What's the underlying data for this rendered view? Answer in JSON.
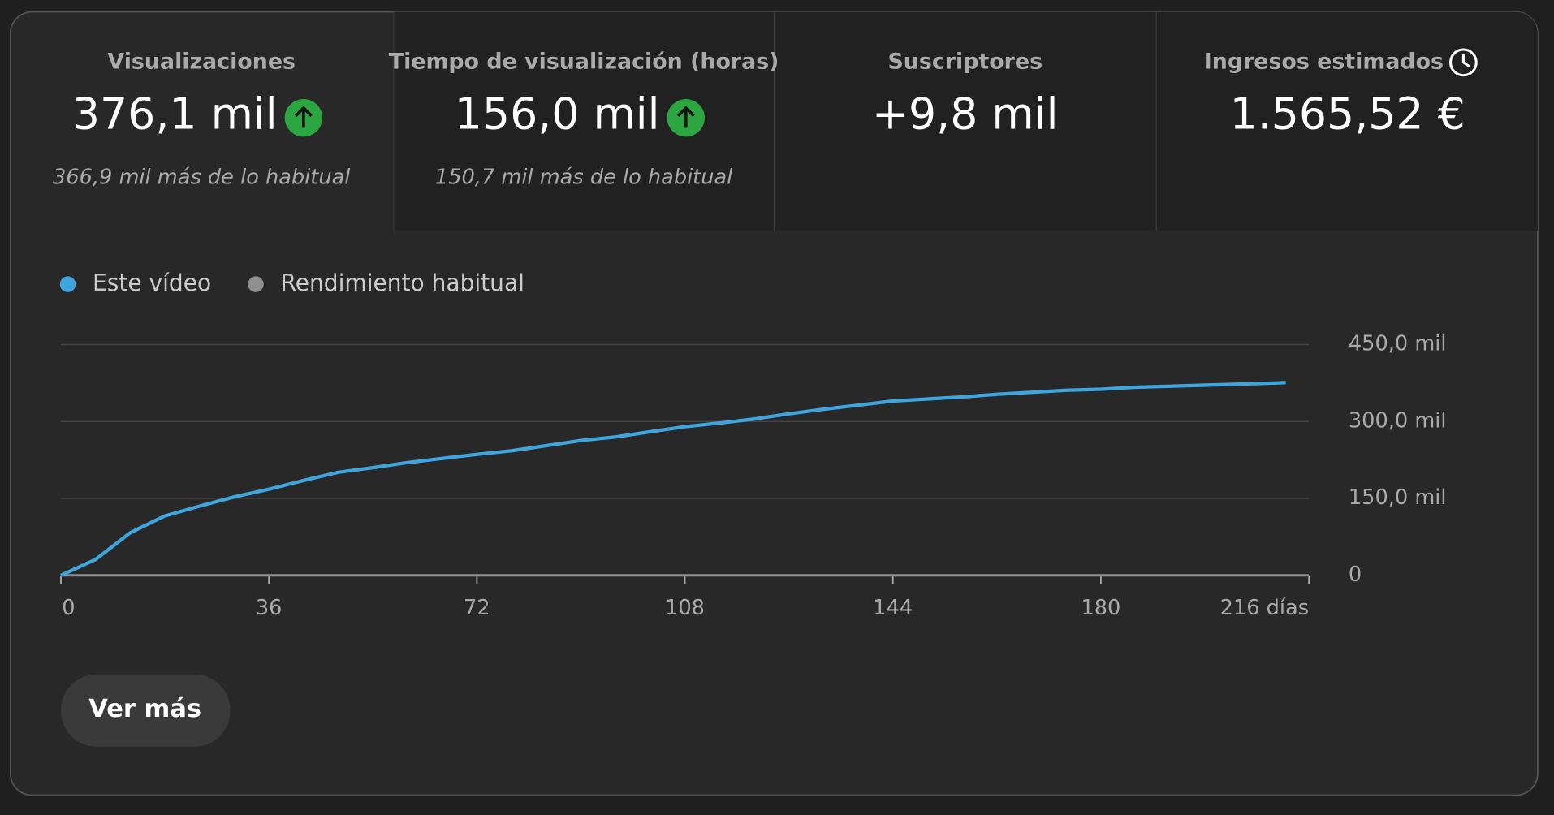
{
  "metrics": [
    {
      "title": "Visualizaciones",
      "value": "376,1 mil",
      "note": "366,9 mil más de lo habitual"
    },
    {
      "title": "Tiempo de visualización (horas)",
      "value": "156,0 mil",
      "note": "150,7 mil más de lo habitual"
    },
    {
      "title": "Suscriptores",
      "value": "+9,8 mil"
    },
    {
      "title": "Ingresos estimados",
      "value": "1.565,52 €"
    }
  ],
  "chart_data": {
    "type": "line",
    "series": [
      {
        "name": "Este vídeo",
        "color": "#3ea6dc",
        "x": [
          0,
          6,
          12,
          18,
          24,
          30,
          36,
          42,
          48,
          54,
          60,
          66,
          72,
          78,
          84,
          90,
          96,
          102,
          108,
          114,
          120,
          126,
          132,
          138,
          144,
          150,
          156,
          162,
          168,
          174,
          180,
          186,
          192,
          198,
          204,
          210,
          212
        ],
        "values": [
          0,
          31000,
          83000,
          116000,
          135000,
          153000,
          168000,
          185000,
          201000,
          210000,
          220000,
          228000,
          236000,
          243000,
          253000,
          263000,
          270000,
          280000,
          290000,
          297000,
          305000,
          315000,
          324000,
          332000,
          340000,
          344000,
          348000,
          353000,
          357000,
          361000,
          363000,
          367000,
          369000,
          371000,
          373000,
          375000,
          376100
        ]
      },
      {
        "name": "Rendimiento habitual",
        "color": "#909090",
        "x": [
          0,
          216
        ],
        "values": [
          0,
          0
        ]
      }
    ],
    "xlim": [
      0,
      216
    ],
    "xticks": [
      0,
      36,
      72,
      108,
      144,
      180,
      {
        "value": 216,
        "label": "216 días"
      }
    ],
    "ylim": [
      0,
      450000
    ],
    "yticks": [
      0,
      {
        "value": 150000,
        "label": "150,0 mil"
      },
      {
        "value": 300000,
        "label": "300,0 mil"
      },
      {
        "value": 450000,
        "label": "450,0 mil"
      }
    ],
    "grid": true
  },
  "button": "Ver más"
}
